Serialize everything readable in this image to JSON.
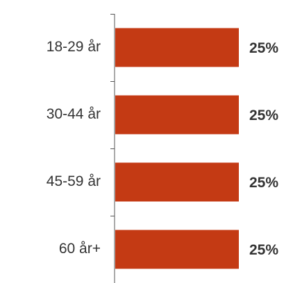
{
  "chart_data": {
    "type": "bar",
    "orientation": "horizontal",
    "categories": [
      "18-29 år",
      "30-44 år",
      "45-59 år",
      "60 år+"
    ],
    "values": [
      25,
      25,
      25,
      25
    ],
    "value_labels": [
      "25%",
      "25%",
      "25%",
      "25%"
    ],
    "title": "",
    "xlabel": "",
    "ylabel": "",
    "grid": false,
    "legend": "none",
    "bar_color": "#C43A14",
    "axis_color": "#555555"
  }
}
